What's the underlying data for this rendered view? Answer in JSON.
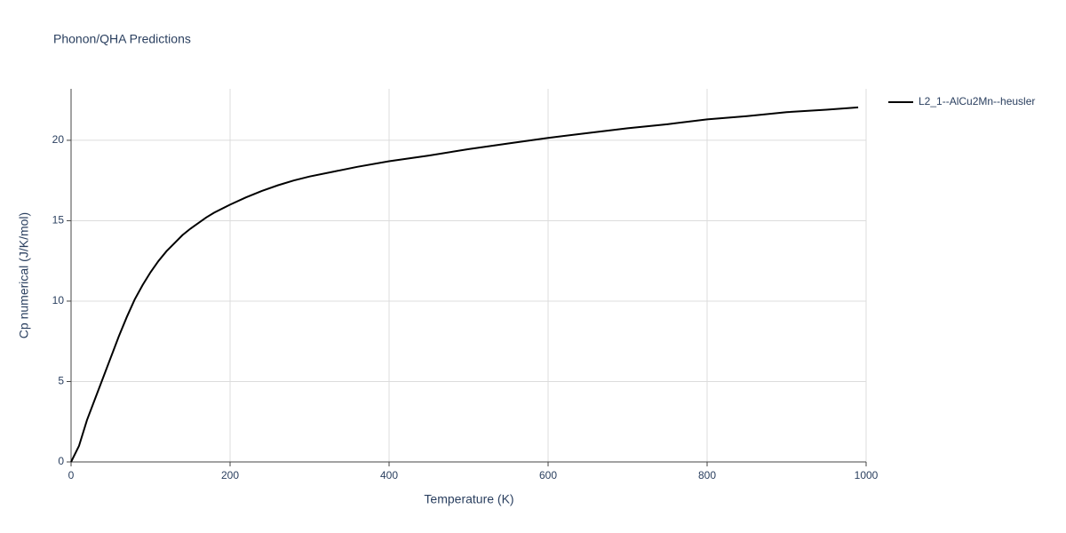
{
  "chart_data": {
    "type": "line",
    "title": "Phonon/QHA Predictions",
    "xlabel": "Temperature (K)",
    "ylabel": "Cp numerical (J/K/mol)",
    "x": [
      0,
      10,
      20,
      30,
      40,
      50,
      60,
      70,
      80,
      90,
      100,
      110,
      120,
      130,
      140,
      150,
      160,
      170,
      180,
      200,
      220,
      240,
      260,
      280,
      300,
      330,
      360,
      400,
      450,
      500,
      550,
      600,
      650,
      700,
      750,
      800,
      850,
      900,
      950,
      990
    ],
    "series": [
      {
        "name": "L2_1--AlCu2Mn--heusler",
        "color": "#000000",
        "values": [
          0,
          1.0,
          2.6,
          3.9,
          5.2,
          6.5,
          7.8,
          9.0,
          10.1,
          11.0,
          11.8,
          12.5,
          13.1,
          13.6,
          14.1,
          14.5,
          14.85,
          15.2,
          15.5,
          16.0,
          16.45,
          16.85,
          17.2,
          17.5,
          17.75,
          18.05,
          18.35,
          18.7,
          19.05,
          19.45,
          19.8,
          20.15,
          20.45,
          20.75,
          21.0,
          21.3,
          21.5,
          21.75,
          21.9,
          22.05
        ]
      }
    ],
    "xlim": [
      0,
      1000
    ],
    "xticks": [
      0,
      200,
      400,
      600,
      800,
      1000
    ],
    "ylim": [
      0,
      23.2
    ],
    "yticks": [
      0,
      5,
      10,
      15,
      20
    ],
    "grid": true,
    "legend": "right"
  }
}
